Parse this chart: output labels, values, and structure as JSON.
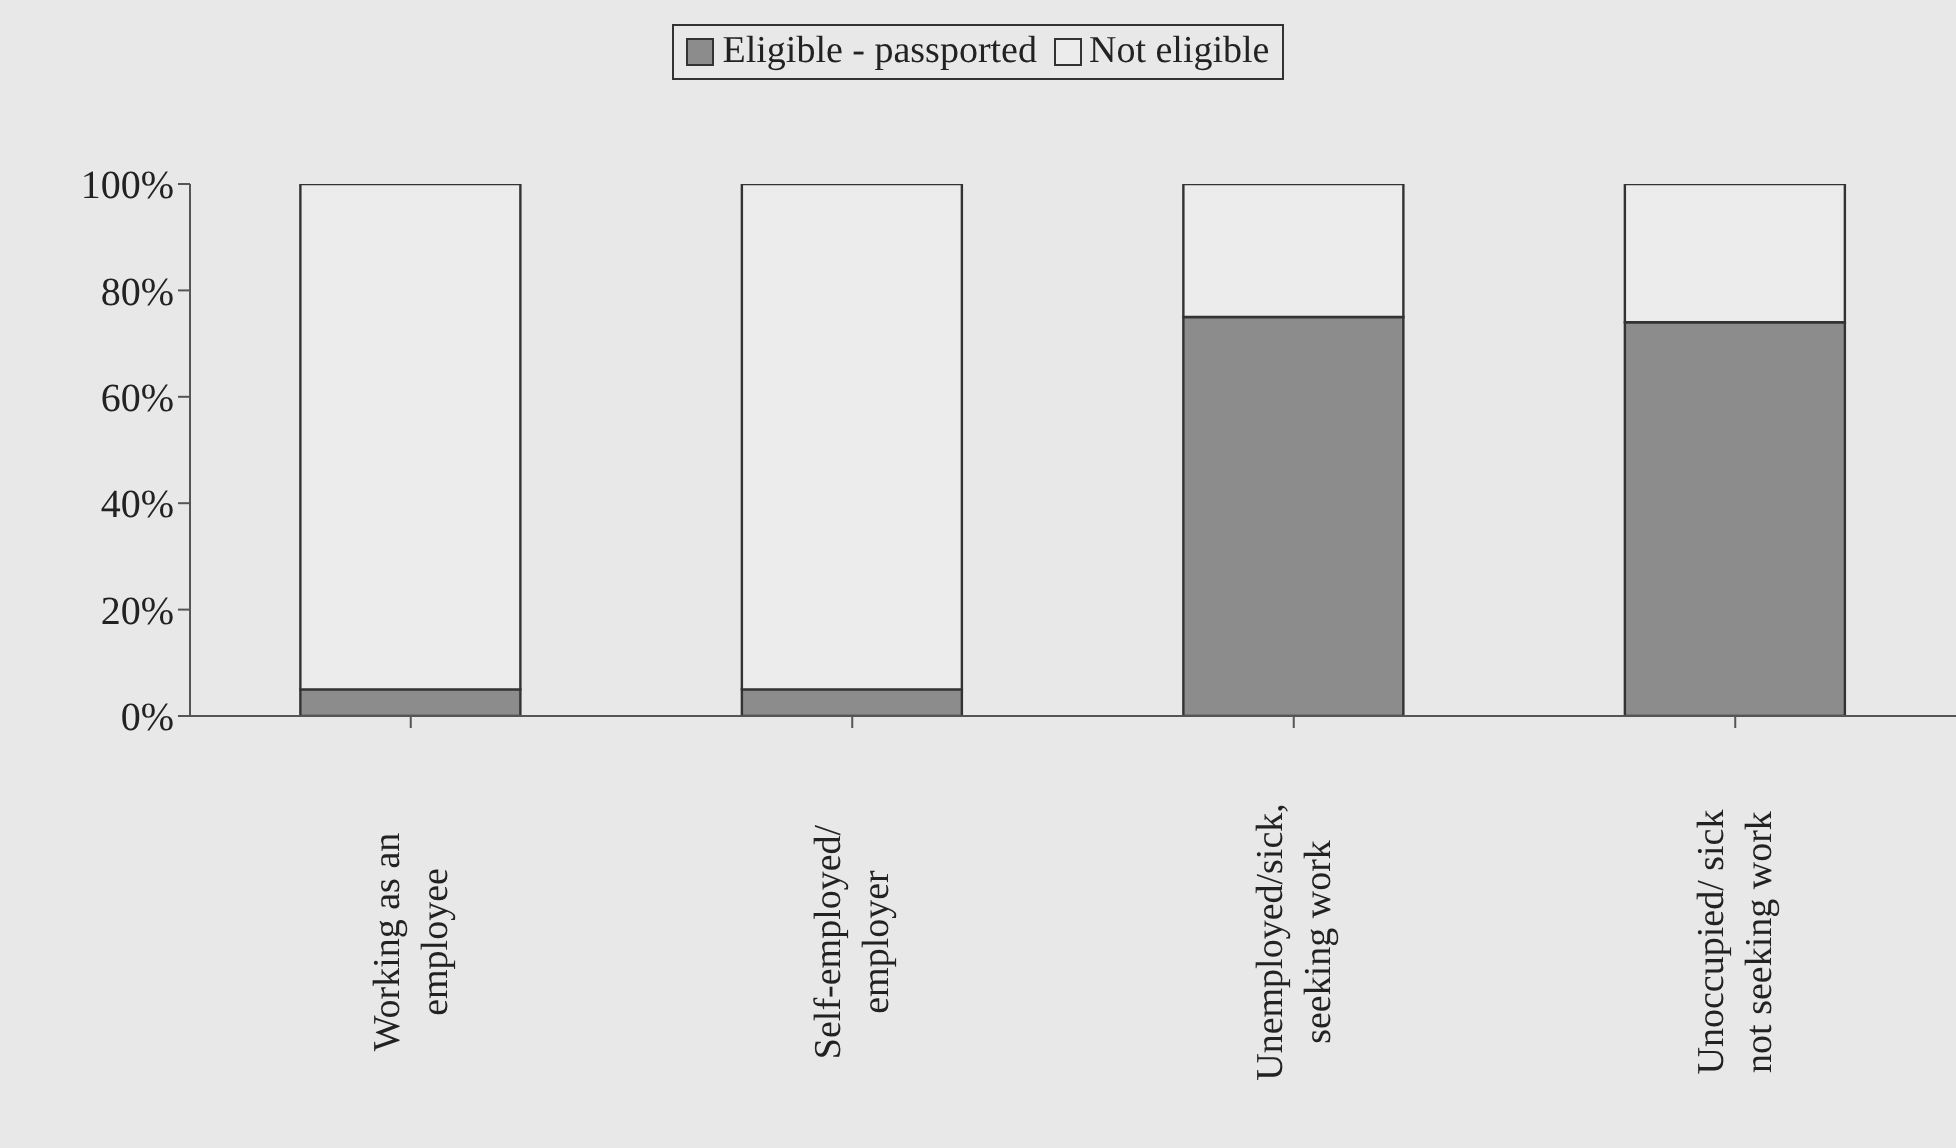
{
  "chart_data": {
    "type": "bar",
    "stacked": true,
    "categories": [
      "Working as an employee",
      "Self-employed/ employer",
      "Unemployed/sick, seeking work",
      "Unoccupied/ sick not seeking work"
    ],
    "series": [
      {
        "name": "Eligible - passported",
        "color": "#8c8c8c",
        "values": [
          5,
          5,
          75,
          74
        ]
      },
      {
        "name": "Not eligible",
        "color": "#ececec",
        "values": [
          95,
          95,
          25,
          26
        ]
      }
    ],
    "ylim": [
      0,
      100
    ],
    "yticks": [
      {
        "value": 0,
        "label": "0%"
      },
      {
        "value": 20,
        "label": "20%"
      },
      {
        "value": 40,
        "label": "40%"
      },
      {
        "value": 60,
        "label": "60%"
      },
      {
        "value": 80,
        "label": "80%"
      },
      {
        "value": 100,
        "label": "100%"
      }
    ],
    "grid": false,
    "legend": "top"
  }
}
